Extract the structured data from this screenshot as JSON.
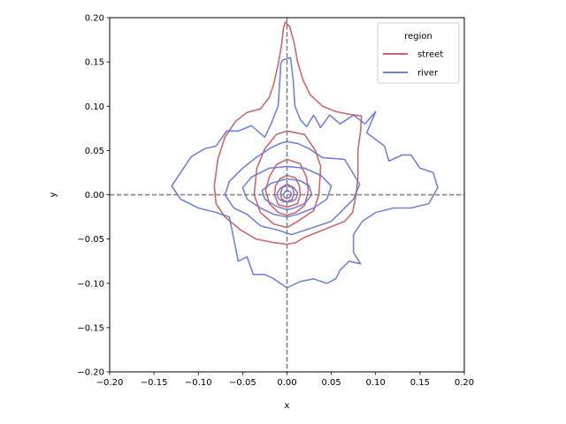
{
  "chart_data": {
    "type": "contour",
    "title": "",
    "xlabel": "x",
    "ylabel": "y",
    "xlim": [
      -0.2,
      0.2
    ],
    "ylim": [
      -0.2,
      0.2
    ],
    "xticks": [
      -0.2,
      -0.15,
      -0.1,
      -0.05,
      0.0,
      0.05,
      0.1,
      0.15,
      0.2
    ],
    "yticks": [
      -0.2,
      -0.15,
      -0.1,
      -0.05,
      0.0,
      0.05,
      0.1,
      0.15,
      0.2
    ],
    "xtick_labels": [
      "−0.20",
      "−0.15",
      "−0.10",
      "−0.05",
      "0.00",
      "0.05",
      "0.10",
      "0.15",
      "0.20"
    ],
    "ytick_labels": [
      "−0.20",
      "−0.15",
      "−0.10",
      "−0.05",
      "0.00",
      "0.05",
      "0.10",
      "0.15",
      "0.20"
    ],
    "grid": false,
    "reference_lines": [
      {
        "orientation": "vertical",
        "value": 0.0,
        "style": "dashed",
        "color": "#808080"
      },
      {
        "orientation": "horizontal",
        "value": 0.0,
        "style": "dashed",
        "color": "#808080"
      }
    ],
    "legend": {
      "title": "region",
      "placement": "upper-right",
      "entries": [
        {
          "label": "street",
          "color": "#c44e52"
        },
        {
          "label": "river",
          "color": "#5a6fd1"
        }
      ]
    },
    "series": [
      {
        "name": "street",
        "color": "#c44e52",
        "contours": [
          [
            [
              -0.002,
              0.195
            ],
            [
              0.003,
              0.19
            ],
            [
              0.008,
              0.172
            ],
            [
              0.012,
              0.15
            ],
            [
              0.018,
              0.13
            ],
            [
              0.026,
              0.113
            ],
            [
              0.04,
              0.1
            ],
            [
              0.055,
              0.094
            ],
            [
              0.07,
              0.091
            ],
            [
              0.084,
              0.089
            ],
            [
              0.083,
              0.072
            ],
            [
              0.08,
              0.05
            ],
            [
              0.08,
              0.02
            ],
            [
              0.078,
              0.0
            ],
            [
              0.074,
              -0.02
            ],
            [
              0.065,
              -0.03
            ],
            [
              0.05,
              -0.036
            ],
            [
              0.035,
              -0.042
            ],
            [
              0.02,
              -0.048
            ],
            [
              0.01,
              -0.054
            ],
            [
              0.0,
              -0.056
            ],
            [
              -0.015,
              -0.054
            ],
            [
              -0.035,
              -0.05
            ],
            [
              -0.052,
              -0.04
            ],
            [
              -0.07,
              -0.025
            ],
            [
              -0.08,
              -0.01
            ],
            [
              -0.082,
              0.01
            ],
            [
              -0.078,
              0.04
            ],
            [
              -0.07,
              0.065
            ],
            [
              -0.058,
              0.083
            ],
            [
              -0.045,
              0.093
            ],
            [
              -0.03,
              0.097
            ],
            [
              -0.02,
              0.11
            ],
            [
              -0.015,
              0.125
            ],
            [
              -0.01,
              0.147
            ],
            [
              -0.006,
              0.17
            ],
            [
              -0.004,
              0.188
            ],
            [
              -0.002,
              0.195
            ]
          ],
          [
            [
              0.0,
              0.072
            ],
            [
              0.02,
              0.068
            ],
            [
              0.032,
              0.05
            ],
            [
              0.038,
              0.032
            ],
            [
              0.036,
              0.0
            ],
            [
              0.03,
              -0.018
            ],
            [
              0.012,
              -0.03
            ],
            [
              0.0,
              -0.037
            ],
            [
              -0.015,
              -0.033
            ],
            [
              -0.03,
              -0.02
            ],
            [
              -0.037,
              0.0
            ],
            [
              -0.034,
              0.03
            ],
            [
              -0.025,
              0.052
            ],
            [
              -0.012,
              0.068
            ],
            [
              0.0,
              0.072
            ]
          ],
          [
            [
              0.0,
              0.04
            ],
            [
              0.015,
              0.035
            ],
            [
              0.022,
              0.02
            ],
            [
              0.024,
              0.005
            ],
            [
              0.02,
              -0.012
            ],
            [
              0.01,
              -0.02
            ],
            [
              0.0,
              -0.023
            ],
            [
              -0.01,
              -0.02
            ],
            [
              -0.02,
              -0.01
            ],
            [
              -0.024,
              0.005
            ],
            [
              -0.02,
              0.02
            ],
            [
              -0.012,
              0.034
            ],
            [
              0.0,
              0.04
            ]
          ],
          [
            [
              0.0,
              0.022
            ],
            [
              0.01,
              0.019
            ],
            [
              0.014,
              0.01
            ],
            [
              0.015,
              0.0
            ],
            [
              0.012,
              -0.01
            ],
            [
              0.0,
              -0.014
            ],
            [
              -0.01,
              -0.011
            ],
            [
              -0.014,
              0.0
            ],
            [
              -0.013,
              0.01
            ],
            [
              -0.008,
              0.018
            ],
            [
              0.0,
              0.022
            ]
          ],
          [
            [
              0.0,
              0.012
            ],
            [
              0.006,
              0.009
            ],
            [
              0.008,
              0.002
            ],
            [
              0.006,
              -0.005
            ],
            [
              0.0,
              -0.008
            ],
            [
              -0.006,
              -0.005
            ],
            [
              -0.007,
              0.002
            ],
            [
              -0.005,
              0.009
            ],
            [
              0.0,
              0.012
            ]
          ]
        ]
      },
      {
        "name": "river",
        "color": "#5a6fd1",
        "contours": [
          [
            [
              -0.005,
              0.152
            ],
            [
              0.004,
              0.155
            ],
            [
              0.007,
              0.13
            ],
            [
              0.009,
              0.1
            ],
            [
              0.015,
              0.085
            ],
            [
              0.022,
              0.077
            ],
            [
              0.03,
              0.09
            ],
            [
              0.038,
              0.076
            ],
            [
              0.048,
              0.09
            ],
            [
              0.06,
              0.08
            ],
            [
              0.075,
              0.09
            ],
            [
              0.088,
              0.08
            ],
            [
              0.1,
              0.094
            ],
            [
              0.09,
              0.07
            ],
            [
              0.11,
              0.055
            ],
            [
              0.115,
              0.038
            ],
            [
              0.13,
              0.045
            ],
            [
              0.14,
              0.045
            ],
            [
              0.15,
              0.03
            ],
            [
              0.165,
              0.025
            ],
            [
              0.17,
              0.008
            ],
            [
              0.16,
              -0.01
            ],
            [
              0.14,
              -0.015
            ],
            [
              0.12,
              -0.015
            ],
            [
              0.1,
              -0.02
            ],
            [
              0.085,
              -0.03
            ],
            [
              0.075,
              -0.045
            ],
            [
              0.075,
              -0.065
            ],
            [
              0.083,
              -0.078
            ],
            [
              0.07,
              -0.075
            ],
            [
              0.06,
              -0.085
            ],
            [
              0.055,
              -0.095
            ],
            [
              0.045,
              -0.1
            ],
            [
              0.03,
              -0.095
            ],
            [
              0.015,
              -0.098
            ],
            [
              0.0,
              -0.105
            ],
            [
              -0.015,
              -0.095
            ],
            [
              -0.025,
              -0.09
            ],
            [
              -0.038,
              -0.09
            ],
            [
              -0.045,
              -0.07
            ],
            [
              -0.055,
              -0.075
            ],
            [
              -0.06,
              -0.05
            ],
            [
              -0.065,
              -0.025
            ],
            [
              -0.08,
              -0.02
            ],
            [
              -0.1,
              -0.015
            ],
            [
              -0.12,
              -0.005
            ],
            [
              -0.13,
              0.01
            ],
            [
              -0.12,
              0.025
            ],
            [
              -0.108,
              0.043
            ],
            [
              -0.093,
              0.052
            ],
            [
              -0.08,
              0.055
            ],
            [
              -0.068,
              0.072
            ],
            [
              -0.055,
              0.072
            ],
            [
              -0.04,
              0.078
            ],
            [
              -0.025,
              0.065
            ],
            [
              -0.018,
              0.08
            ],
            [
              -0.01,
              0.1
            ],
            [
              -0.008,
              0.13
            ],
            [
              -0.007,
              0.148
            ],
            [
              -0.005,
              0.152
            ]
          ],
          [
            [
              0.0,
              0.06
            ],
            [
              0.012,
              0.058
            ],
            [
              0.025,
              0.052
            ],
            [
              0.04,
              0.042
            ],
            [
              0.065,
              0.04
            ],
            [
              0.082,
              0.012
            ],
            [
              0.075,
              -0.005
            ],
            [
              0.065,
              -0.015
            ],
            [
              0.05,
              -0.03
            ],
            [
              0.035,
              -0.035
            ],
            [
              0.02,
              -0.04
            ],
            [
              0.005,
              -0.045
            ],
            [
              -0.01,
              -0.04
            ],
            [
              -0.03,
              -0.035
            ],
            [
              -0.045,
              -0.022
            ],
            [
              -0.06,
              -0.015
            ],
            [
              -0.07,
              0.0
            ],
            [
              -0.065,
              0.015
            ],
            [
              -0.05,
              0.03
            ],
            [
              -0.035,
              0.042
            ],
            [
              -0.02,
              0.052
            ],
            [
              -0.008,
              0.058
            ],
            [
              0.0,
              0.06
            ]
          ],
          [
            [
              0.0,
              0.032
            ],
            [
              0.02,
              0.03
            ],
            [
              0.038,
              0.022
            ],
            [
              0.05,
              0.01
            ],
            [
              0.045,
              -0.005
            ],
            [
              0.03,
              -0.015
            ],
            [
              0.012,
              -0.022
            ],
            [
              0.0,
              -0.025
            ],
            [
              -0.015,
              -0.022
            ],
            [
              -0.03,
              -0.015
            ],
            [
              -0.045,
              -0.005
            ],
            [
              -0.05,
              0.008
            ],
            [
              -0.04,
              0.02
            ],
            [
              -0.02,
              0.03
            ],
            [
              0.0,
              0.032
            ]
          ],
          [
            [
              0.0,
              0.018
            ],
            [
              0.015,
              0.016
            ],
            [
              0.025,
              0.01
            ],
            [
              0.028,
              0.0
            ],
            [
              0.02,
              -0.01
            ],
            [
              0.008,
              -0.015
            ],
            [
              0.0,
              -0.017
            ],
            [
              -0.012,
              -0.013
            ],
            [
              -0.025,
              -0.005
            ],
            [
              -0.028,
              0.005
            ],
            [
              -0.018,
              0.013
            ],
            [
              0.0,
              0.018
            ]
          ],
          [
            [
              0.0,
              0.01
            ],
            [
              0.008,
              0.008
            ],
            [
              0.012,
              0.002
            ],
            [
              0.01,
              -0.005
            ],
            [
              0.004,
              -0.008
            ],
            [
              -0.004,
              -0.008
            ],
            [
              -0.01,
              -0.004
            ],
            [
              -0.011,
              0.002
            ],
            [
              -0.007,
              0.008
            ],
            [
              0.0,
              0.01
            ]
          ],
          [
            [
              0.0,
              0.005
            ],
            [
              0.004,
              0.003
            ],
            [
              0.005,
              0.0
            ],
            [
              0.003,
              -0.003
            ],
            [
              0.0,
              -0.004
            ],
            [
              -0.003,
              -0.003
            ],
            [
              -0.004,
              0.0
            ],
            [
              -0.002,
              0.004
            ],
            [
              0.0,
              0.005
            ]
          ]
        ]
      }
    ]
  }
}
